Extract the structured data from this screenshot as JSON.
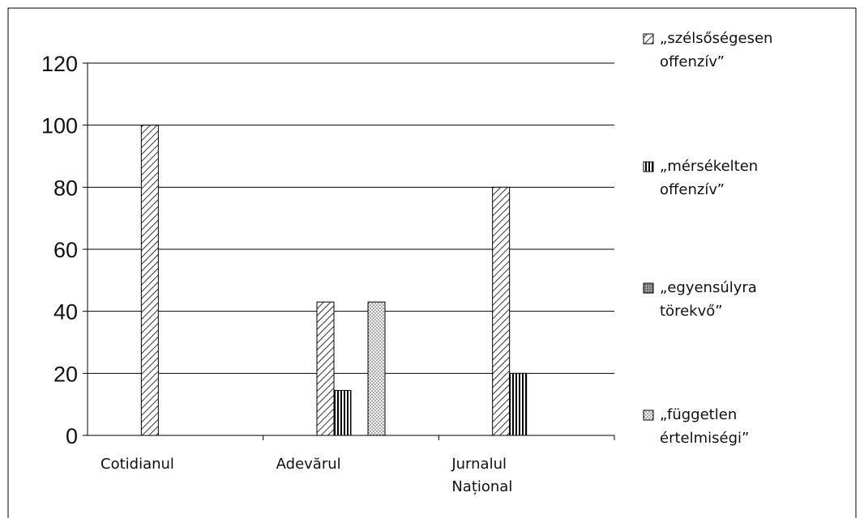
{
  "chart_data": {
    "type": "bar",
    "title": "",
    "xlabel": "",
    "ylabel": "",
    "ylim": [
      0,
      120
    ],
    "yticks": [
      0,
      20,
      40,
      60,
      80,
      100,
      120
    ],
    "grid": true,
    "legend_position": "right",
    "categories": [
      [
        "Cotidianul"
      ],
      [
        "Adevărul"
      ],
      [
        "Jurnalul",
        "Național"
      ]
    ],
    "series": [
      {
        "name": [
          "„szélsőségesen",
          "offenzív”"
        ],
        "pattern": "diagonal",
        "values": [
          100,
          43,
          80
        ]
      },
      {
        "name": [
          "„mérsékelten",
          "offenzív”"
        ],
        "pattern": "vertical",
        "values": [
          0,
          14.5,
          20
        ]
      },
      {
        "name": [
          "„egyensúlyra",
          "törekvő”"
        ],
        "pattern": "crosshatch",
        "values": [
          0,
          0,
          0
        ]
      },
      {
        "name": [
          "„független",
          "értelmiségi”"
        ],
        "pattern": "dots",
        "values": [
          0,
          43,
          0
        ]
      }
    ]
  }
}
